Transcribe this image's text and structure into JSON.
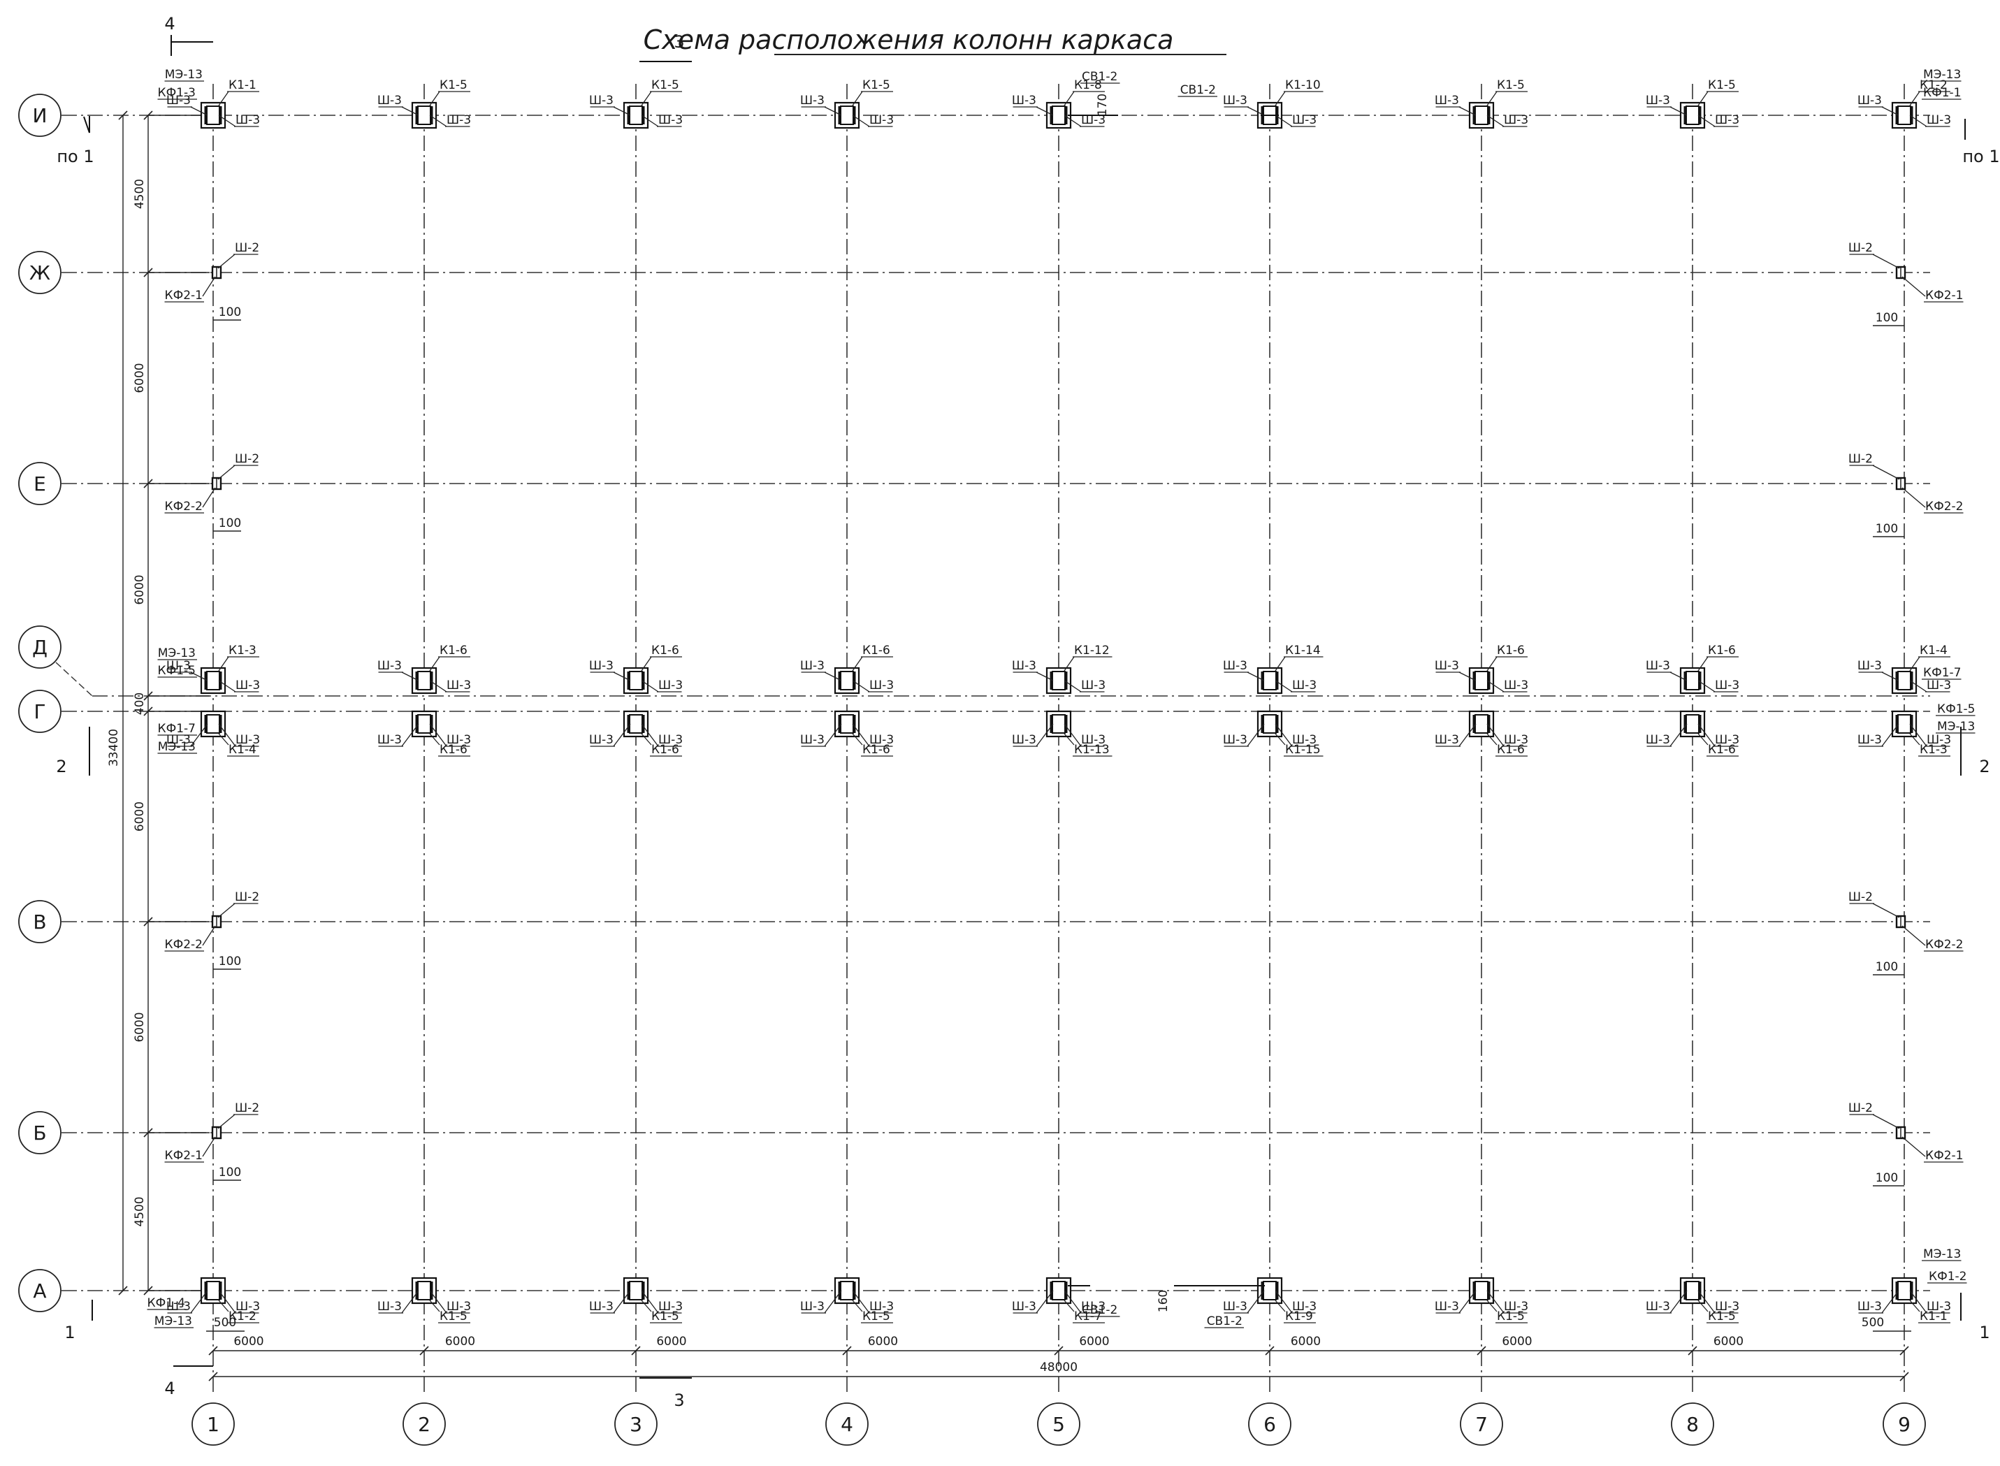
{
  "title": "Схема расположения колонн каркаса",
  "axes_x": [
    "1",
    "2",
    "3",
    "4",
    "5",
    "6",
    "7",
    "8",
    "9"
  ],
  "axes_y": [
    "И",
    "Ж",
    "Е",
    "Д",
    "Г",
    "В",
    "Б",
    "А"
  ],
  "dimensions": {
    "bay": "6000",
    "total_x": "48000",
    "y_segments": [
      "4500",
      "6000",
      "6000",
      "400",
      "6000",
      "6000",
      "4500"
    ],
    "total_y": "33400",
    "offset_100": "100",
    "offset_500": "500",
    "offset_170": "170",
    "offset_160": "160"
  },
  "sections": {
    "s1": "1",
    "s2": "2",
    "s3": "3",
    "s4": "4",
    "po1": "по 1"
  },
  "columns": {
    "I": [
      "К1-1",
      "К1-5",
      "К1-5",
      "К1-5",
      "К1-8",
      "К1-10",
      "К1-5",
      "К1-5",
      "К1-2"
    ],
    "D": [
      "К1-3",
      "К1-6",
      "К1-6",
      "К1-6",
      "К1-12",
      "К1-14",
      "К1-6",
      "К1-6",
      "К1-4"
    ],
    "G": [
      "К1-4",
      "К1-6",
      "К1-6",
      "К1-6",
      "К1-13",
      "К1-15",
      "К1-6",
      "К1-6",
      "К1-3"
    ],
    "A": [
      "К1-2",
      "К1-5",
      "К1-5",
      "К1-5",
      "К1-7",
      "К1-9",
      "К1-5",
      "К1-5",
      "К1-1"
    ]
  },
  "marks": {
    "sh3": "Ш-3",
    "sh2": "Ш-2",
    "me13": "МЭ-13",
    "kf13": "КФ1-3",
    "kf11": "КФ1-1",
    "kf15": "КФ1-5",
    "kf17": "КФ1-7",
    "kf14": "КФ1-4",
    "kf12": "КФ1-2",
    "kf21": "КФ2-1",
    "kf22": "КФ2-2",
    "sv12": "СВ1-2"
  }
}
